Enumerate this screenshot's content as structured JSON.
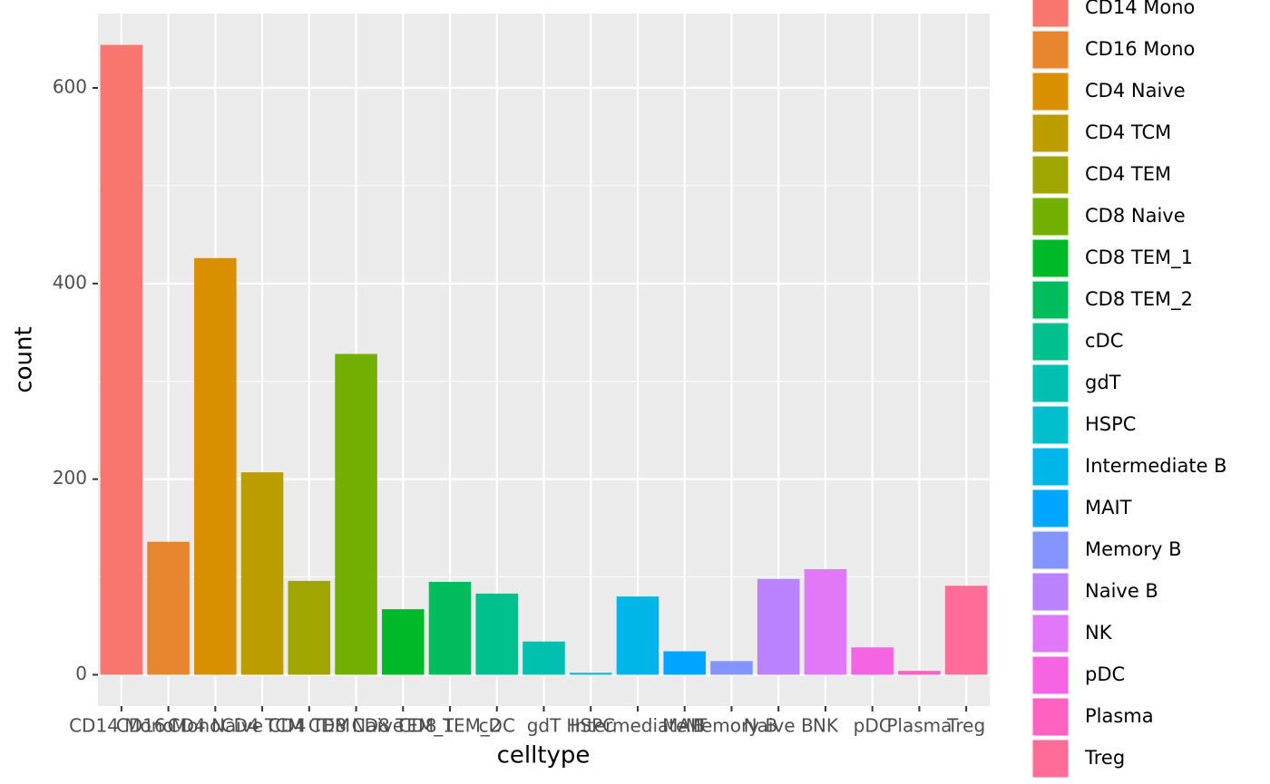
{
  "chart_data": {
    "type": "bar",
    "x_label": "celltype",
    "y_label": "count",
    "categories": [
      "CD14 Mono",
      "CD16 Mono",
      "CD4 Naive",
      "CD4 TCM",
      "CD4 TEM",
      "CD8 Naive",
      "CD8 TEM_1",
      "CD8 TEM_2",
      "cDC",
      "gdT",
      "HSPC",
      "Intermediate B",
      "MAIT",
      "Memory B",
      "Naive B",
      "NK",
      "pDC",
      "Plasma",
      "Treg"
    ],
    "values": [
      644,
      136,
      426,
      207,
      96,
      328,
      67,
      95,
      83,
      34,
      2,
      80,
      24,
      14,
      98,
      108,
      28,
      4,
      91
    ],
    "colors": [
      "#F8766D",
      "#E8852F",
      "#D89000",
      "#BB9D00",
      "#A0A600",
      "#72B000",
      "#00B928",
      "#00BC5C",
      "#00C08E",
      "#00C1B0",
      "#00BECC",
      "#00B5E7",
      "#00A5FF",
      "#8494FF",
      "#BB82FF",
      "#E078F8",
      "#F564E3",
      "#FF62C0",
      "#FF6C98"
    ],
    "ylim": [
      -32,
      676
    ],
    "yticks": [
      0,
      200,
      400,
      600
    ],
    "grid": true,
    "legend": "right"
  }
}
